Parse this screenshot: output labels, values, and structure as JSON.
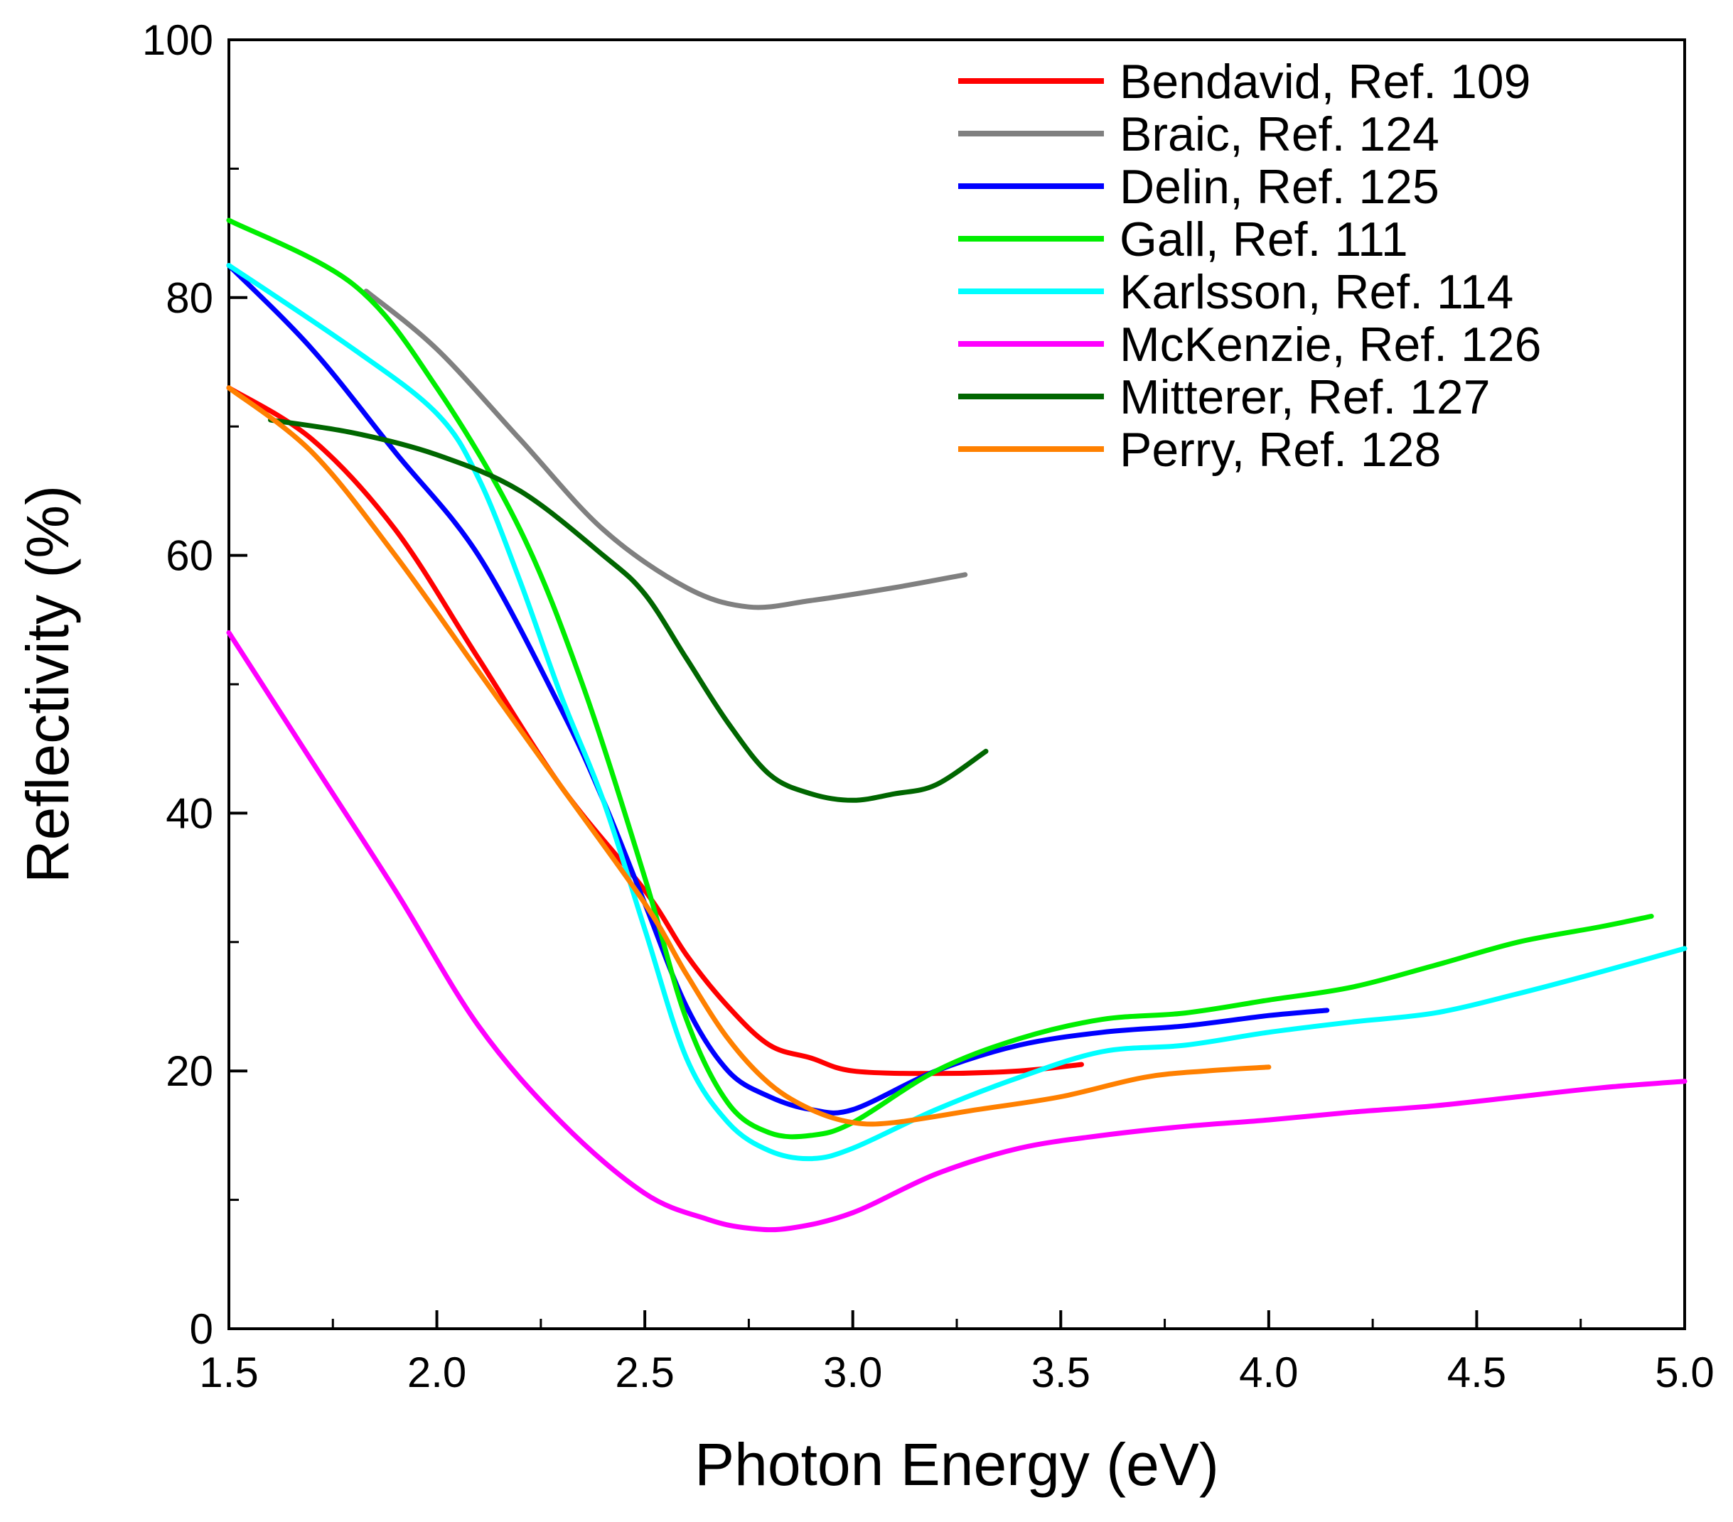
{
  "chart_data": {
    "type": "line",
    "title": "",
    "xlabel": "Photon Energy (eV)",
    "ylabel": "Reflectivity (%)",
    "xlim": [
      1.5,
      5.0
    ],
    "ylim": [
      0,
      100
    ],
    "x_ticks": [
      1.5,
      2.0,
      2.5,
      3.0,
      3.5,
      4.0,
      4.5,
      5.0
    ],
    "x_tick_labels": [
      "1.5",
      "2.0",
      "2.5",
      "3.0",
      "3.5",
      "4.0",
      "4.5",
      "5.0"
    ],
    "y_ticks": [
      0,
      20,
      40,
      60,
      80,
      100
    ],
    "y_tick_labels": [
      "0",
      "20",
      "40",
      "60",
      "80",
      "100"
    ],
    "grid": false,
    "legend_position": "top-right",
    "series": [
      {
        "name": "Bendavid, Ref. 109",
        "color": "#ff0000",
        "points": [
          [
            1.5,
            73
          ],
          [
            1.7,
            69
          ],
          [
            1.9,
            62
          ],
          [
            2.1,
            52
          ],
          [
            2.3,
            42
          ],
          [
            2.5,
            34
          ],
          [
            2.6,
            29
          ],
          [
            2.7,
            25
          ],
          [
            2.8,
            22
          ],
          [
            2.9,
            21
          ],
          [
            3.0,
            20
          ],
          [
            3.2,
            19.8
          ],
          [
            3.4,
            20
          ],
          [
            3.55,
            20.5
          ]
        ]
      },
      {
        "name": "Braic, Ref. 124",
        "color": "#808080",
        "points": [
          [
            1.83,
            80.5
          ],
          [
            2.0,
            76
          ],
          [
            2.2,
            69
          ],
          [
            2.4,
            62
          ],
          [
            2.6,
            57.5
          ],
          [
            2.75,
            56
          ],
          [
            2.9,
            56.5
          ],
          [
            3.1,
            57.5
          ],
          [
            3.27,
            58.5
          ]
        ]
      },
      {
        "name": "Delin, Ref. 125",
        "color": "#0000ff",
        "points": [
          [
            1.5,
            82.5
          ],
          [
            1.7,
            76
          ],
          [
            1.9,
            68
          ],
          [
            2.1,
            60
          ],
          [
            2.3,
            48
          ],
          [
            2.4,
            41
          ],
          [
            2.5,
            33
          ],
          [
            2.6,
            25
          ],
          [
            2.7,
            20
          ],
          [
            2.8,
            18
          ],
          [
            2.9,
            17
          ],
          [
            3.0,
            17
          ],
          [
            3.2,
            20
          ],
          [
            3.4,
            22
          ],
          [
            3.6,
            23
          ],
          [
            3.8,
            23.5
          ],
          [
            4.0,
            24.3
          ],
          [
            4.14,
            24.7
          ]
        ]
      },
      {
        "name": "Gall, Ref. 111",
        "color": "#00ee00",
        "points": [
          [
            1.5,
            86
          ],
          [
            1.8,
            81
          ],
          [
            2.0,
            73
          ],
          [
            2.2,
            62
          ],
          [
            2.35,
            50
          ],
          [
            2.5,
            35
          ],
          [
            2.6,
            24
          ],
          [
            2.7,
            17.5
          ],
          [
            2.8,
            15.2
          ],
          [
            2.9,
            15
          ],
          [
            3.0,
            16
          ],
          [
            3.2,
            20
          ],
          [
            3.4,
            22.5
          ],
          [
            3.6,
            24
          ],
          [
            3.8,
            24.5
          ],
          [
            4.0,
            25.5
          ],
          [
            4.2,
            26.5
          ],
          [
            4.4,
            28.2
          ],
          [
            4.6,
            30
          ],
          [
            4.8,
            31.2
          ],
          [
            4.92,
            32
          ]
        ]
      },
      {
        "name": "Karlsson, Ref. 114",
        "color": "#00ffff",
        "points": [
          [
            1.5,
            82.5
          ],
          [
            1.8,
            76
          ],
          [
            2.0,
            71
          ],
          [
            2.1,
            66
          ],
          [
            2.2,
            58
          ],
          [
            2.3,
            49
          ],
          [
            2.4,
            41
          ],
          [
            2.5,
            31
          ],
          [
            2.6,
            21
          ],
          [
            2.7,
            16
          ],
          [
            2.8,
            13.8
          ],
          [
            2.9,
            13.2
          ],
          [
            3.0,
            14
          ],
          [
            3.2,
            17
          ],
          [
            3.4,
            19.5
          ],
          [
            3.6,
            21.5
          ],
          [
            3.8,
            22
          ],
          [
            4.0,
            23
          ],
          [
            4.2,
            23.8
          ],
          [
            4.4,
            24.5
          ],
          [
            4.6,
            26
          ],
          [
            4.8,
            27.7
          ],
          [
            5.0,
            29.5
          ]
        ]
      },
      {
        "name": "McKenzie, Ref. 126",
        "color": "#ff00ff",
        "points": [
          [
            1.5,
            54
          ],
          [
            1.7,
            44
          ],
          [
            1.9,
            34
          ],
          [
            2.1,
            23.5
          ],
          [
            2.3,
            16
          ],
          [
            2.5,
            10.5
          ],
          [
            2.65,
            8.5
          ],
          [
            2.75,
            7.8
          ],
          [
            2.85,
            7.8
          ],
          [
            3.0,
            9
          ],
          [
            3.2,
            12
          ],
          [
            3.4,
            14
          ],
          [
            3.6,
            15
          ],
          [
            3.8,
            15.7
          ],
          [
            4.0,
            16.2
          ],
          [
            4.2,
            16.8
          ],
          [
            4.4,
            17.3
          ],
          [
            4.6,
            18
          ],
          [
            4.8,
            18.7
          ],
          [
            5.0,
            19.2
          ]
        ]
      },
      {
        "name": "Mitterer, Ref. 127",
        "color": "#006600",
        "points": [
          [
            1.6,
            70.5
          ],
          [
            1.8,
            69.5
          ],
          [
            2.0,
            67.8
          ],
          [
            2.2,
            65
          ],
          [
            2.4,
            60
          ],
          [
            2.5,
            57
          ],
          [
            2.6,
            52
          ],
          [
            2.7,
            47
          ],
          [
            2.8,
            43
          ],
          [
            2.9,
            41.5
          ],
          [
            3.0,
            41
          ],
          [
            3.1,
            41.5
          ],
          [
            3.2,
            42.2
          ],
          [
            3.32,
            44.8
          ]
        ]
      },
      {
        "name": "Perry, Ref. 128",
        "color": "#ff8000",
        "points": [
          [
            1.5,
            73
          ],
          [
            1.7,
            68
          ],
          [
            1.9,
            60
          ],
          [
            2.1,
            51
          ],
          [
            2.3,
            42
          ],
          [
            2.5,
            33
          ],
          [
            2.6,
            27.5
          ],
          [
            2.7,
            22.5
          ],
          [
            2.8,
            19
          ],
          [
            2.9,
            17
          ],
          [
            3.0,
            16
          ],
          [
            3.1,
            16
          ],
          [
            3.3,
            17
          ],
          [
            3.5,
            18
          ],
          [
            3.7,
            19.5
          ],
          [
            3.85,
            20
          ],
          [
            4.0,
            20.3
          ]
        ]
      }
    ]
  }
}
